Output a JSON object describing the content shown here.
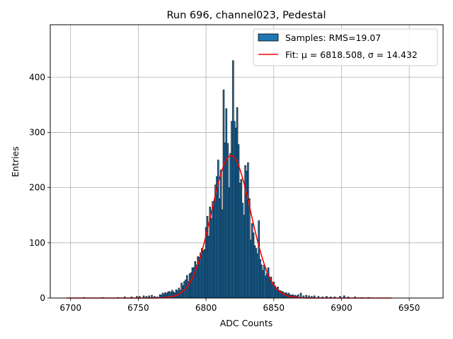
{
  "chart_data": {
    "type": "histogram",
    "title": "Run 696, channel023, Pedestal",
    "xlabel": "ADC Counts",
    "ylabel": "Entries",
    "xlim": [
      6685,
      6975
    ],
    "ylim": [
      0,
      495
    ],
    "xticks": [
      6700,
      6750,
      6800,
      6850,
      6900,
      6950
    ],
    "yticks": [
      0,
      100,
      200,
      300,
      400
    ],
    "grid": true,
    "legend_position": "top-right",
    "colors": {
      "bars": "#1f77b4",
      "bar_edge": "#000000",
      "fit": "#ff0000"
    },
    "series": [
      {
        "name": "Samples: RMS=19.07",
        "type": "bar",
        "bin_width": 1,
        "x": [
          6710,
          6724,
          6735,
          6740,
          6745,
          6749,
          6751,
          6754,
          6756,
          6758,
          6760,
          6762,
          6764,
          6766,
          6767,
          6768,
          6769,
          6770,
          6771,
          6772,
          6773,
          6774,
          6775,
          6776,
          6777,
          6778,
          6779,
          6780,
          6781,
          6782,
          6783,
          6784,
          6785,
          6786,
          6787,
          6788,
          6789,
          6790,
          6791,
          6792,
          6793,
          6794,
          6795,
          6796,
          6797,
          6798,
          6799,
          6800,
          6801,
          6802,
          6803,
          6804,
          6805,
          6806,
          6807,
          6808,
          6809,
          6810,
          6811,
          6812,
          6813,
          6814,
          6815,
          6816,
          6817,
          6818,
          6819,
          6820,
          6821,
          6822,
          6823,
          6824,
          6825,
          6826,
          6827,
          6828,
          6829,
          6830,
          6831,
          6832,
          6833,
          6834,
          6835,
          6836,
          6837,
          6838,
          6839,
          6840,
          6841,
          6842,
          6843,
          6844,
          6845,
          6846,
          6847,
          6848,
          6849,
          6850,
          6851,
          6852,
          6853,
          6854,
          6855,
          6856,
          6857,
          6858,
          6859,
          6860,
          6861,
          6862,
          6863,
          6864,
          6865,
          6866,
          6867,
          6868,
          6870,
          6872,
          6874,
          6876,
          6878,
          6880,
          6883,
          6886,
          6889,
          6892,
          6895,
          6899,
          6902,
          6905,
          6910,
          6915,
          6920
        ],
        "values": [
          1,
          1,
          1,
          2,
          2,
          3,
          3,
          4,
          3,
          4,
          5,
          3,
          2,
          6,
          5,
          9,
          7,
          10,
          8,
          11,
          12,
          10,
          14,
          11,
          9,
          15,
          13,
          18,
          14,
          27,
          22,
          30,
          33,
          41,
          30,
          44,
          46,
          55,
          55,
          66,
          60,
          75,
          74,
          82,
          90,
          86,
          88,
          128,
          148,
          112,
          165,
          144,
          175,
          175,
          205,
          220,
          250,
          180,
          232,
          160,
          377,
          281,
          343,
          280,
          200,
          262,
          320,
          430,
          320,
          308,
          345,
          278,
          208,
          215,
          172,
          150,
          240,
          230,
          245,
          180,
          105,
          135,
          118,
          95,
          90,
          80,
          140,
          70,
          60,
          50,
          60,
          40,
          45,
          55,
          35,
          38,
          25,
          29,
          22,
          18,
          20,
          14,
          13,
          12,
          11,
          8,
          10,
          7,
          9,
          6,
          5,
          6,
          4,
          5,
          3,
          6,
          9,
          4,
          5,
          4,
          3,
          4,
          3,
          2,
          3,
          2,
          2,
          3,
          4,
          2,
          2,
          1,
          1
        ]
      },
      {
        "name": "Fit: μ = 6818.508, σ = 14.432",
        "type": "line",
        "model": "gaussian",
        "mu": 6818.508,
        "sigma": 14.432,
        "amplitude": 258,
        "x_range": [
          6697,
          6937
        ]
      }
    ]
  }
}
